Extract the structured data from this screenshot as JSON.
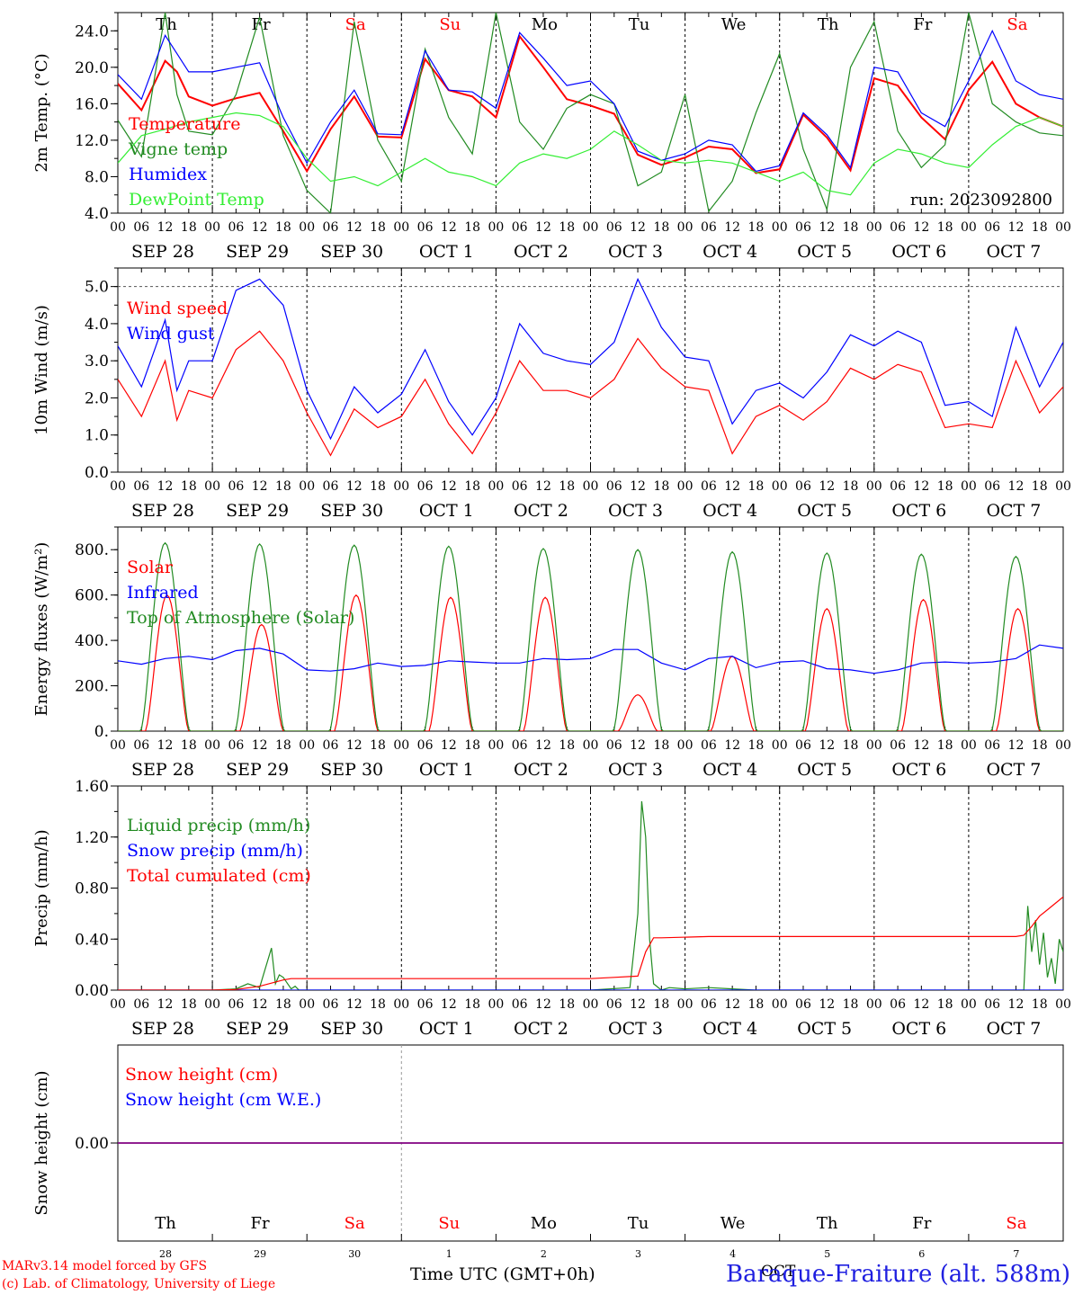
{
  "meta": {
    "station": "Baraque-Fraiture (alt. 588m)",
    "credit_line1": "MARv3.14 model forced by GFS",
    "credit_line2": "(c) Lab. of Climatology, University of Liege",
    "time_label": "Time UTC (GMT+0h)",
    "month_label": "OCT",
    "run_label": "run: 2023092800",
    "colors": {
      "red": "#ff0000",
      "green": "#228b22",
      "blue": "#0000ff",
      "lightgreen": "#33ee33",
      "purple": "#800080"
    }
  },
  "day_names": [
    "Th",
    "Fr",
    "Sa",
    "Su",
    "Mo",
    "Tu",
    "We",
    "Th",
    "Fr",
    "Sa"
  ],
  "weekend_days": [
    2,
    3,
    9
  ],
  "date_labels": [
    "SEP 28",
    "SEP 29",
    "SEP 30",
    "OCT  1",
    "OCT  2",
    "OCT  3",
    "OCT  4",
    "OCT  5",
    "OCT  6",
    "OCT  7"
  ],
  "hour_ticks": [
    "00",
    "06",
    "12",
    "18"
  ],
  "snow_day_numbers": [
    "28",
    "29",
    "30",
    "1",
    "2",
    "3",
    "4",
    "5",
    "6",
    "7"
  ],
  "chart_data": [
    {
      "type": "line",
      "id": "temperature",
      "ylabel": "2m Temp. (°C)",
      "ylim": [
        4,
        26
      ],
      "yticks": [
        4.0,
        8.0,
        12.0,
        16.0,
        20.0,
        24.0
      ],
      "ytick_labels": [
        "4.0",
        "8.0",
        "12.0",
        "16.0",
        "20.0",
        "24.0"
      ],
      "x_unit": "hours since SEP 28 00 UTC",
      "series": [
        {
          "name": "Temperature",
          "color": "red",
          "x": [
            0,
            6,
            12,
            15,
            18,
            24,
            30,
            36,
            42,
            48,
            54,
            60,
            66,
            72,
            78,
            84,
            90,
            96,
            102,
            108,
            114,
            120,
            126,
            132,
            138,
            144,
            150,
            156,
            162,
            168,
            174,
            180,
            186,
            192,
            198,
            204,
            210,
            216,
            222,
            228,
            234,
            240
          ],
          "values": [
            18.2,
            15.3,
            20.7,
            19.5,
            16.8,
            15.8,
            16.6,
            17.2,
            13.0,
            8.6,
            13.2,
            16.8,
            12.4,
            12.3,
            20.9,
            17.5,
            16.8,
            14.5,
            23.4,
            20.0,
            16.5,
            15.8,
            14.9,
            10.4,
            9.3,
            10.1,
            11.3,
            11.0,
            8.4,
            8.8,
            14.8,
            12.3,
            8.7,
            18.8,
            18.0,
            14.5,
            12.1,
            17.5,
            20.6,
            16.0,
            14.5,
            13.5
          ]
        },
        {
          "name": "Vigne temp",
          "color": "green",
          "x": [
            0,
            6,
            9,
            12,
            15,
            18,
            24,
            30,
            36,
            42,
            48,
            54,
            60,
            66,
            72,
            78,
            84,
            90,
            96,
            102,
            108,
            114,
            120,
            126,
            132,
            138,
            144,
            150,
            156,
            162,
            168,
            174,
            180,
            186,
            192,
            198,
            204,
            210,
            216,
            222,
            228,
            234,
            240
          ],
          "values": [
            14.2,
            10.2,
            18.0,
            26.0,
            17.0,
            13.0,
            12.6,
            17.0,
            25.5,
            12.5,
            6.5,
            4.0,
            25.0,
            12.0,
            7.5,
            22.0,
            14.5,
            10.5,
            26.0,
            14.0,
            11.0,
            15.5,
            17.0,
            16.0,
            7.0,
            8.5,
            17.0,
            4.2,
            7.5,
            15.0,
            21.5,
            11.0,
            4.4,
            20.0,
            25.0,
            13.0,
            9.0,
            11.5,
            26.0,
            16.0,
            14.0,
            12.8,
            12.5
          ]
        },
        {
          "name": "Humidex",
          "color": "blue",
          "x": [
            0,
            6,
            12,
            15,
            18,
            24,
            30,
            36,
            42,
            48,
            54,
            60,
            66,
            72,
            78,
            84,
            90,
            96,
            102,
            108,
            114,
            120,
            126,
            132,
            138,
            144,
            150,
            156,
            162,
            168,
            174,
            180,
            186,
            192,
            198,
            204,
            210,
            216,
            222,
            228,
            234,
            240
          ],
          "values": [
            19.2,
            16.5,
            23.5,
            21.5,
            19.5,
            19.5,
            20.0,
            20.5,
            14.5,
            9.5,
            14.0,
            17.5,
            12.7,
            12.6,
            21.8,
            17.5,
            17.3,
            15.5,
            23.8,
            21.0,
            18.0,
            18.5,
            16.0,
            10.8,
            9.8,
            10.5,
            12.0,
            11.5,
            8.6,
            9.2,
            15.0,
            12.6,
            9.0,
            20.0,
            19.5,
            15.0,
            13.5,
            18.5,
            24.0,
            18.5,
            17.0,
            16.5
          ]
        },
        {
          "name": "DewPoint Temp",
          "color": "lightgreen",
          "x": [
            0,
            6,
            12,
            18,
            24,
            30,
            36,
            42,
            48,
            54,
            60,
            66,
            72,
            78,
            84,
            90,
            96,
            102,
            108,
            114,
            120,
            126,
            132,
            138,
            144,
            150,
            156,
            162,
            168,
            174,
            180,
            186,
            192,
            198,
            204,
            210,
            216,
            222,
            228,
            234,
            240
          ],
          "values": [
            9.5,
            12.5,
            13.2,
            14.0,
            14.5,
            15.0,
            14.7,
            13.5,
            10.0,
            7.5,
            8.0,
            7.0,
            8.5,
            10.0,
            8.5,
            8.0,
            7.0,
            9.5,
            10.5,
            10.0,
            11.0,
            13.0,
            11.5,
            9.8,
            9.5,
            9.8,
            9.5,
            8.5,
            7.5,
            8.5,
            6.5,
            6.0,
            9.5,
            11.0,
            10.5,
            9.5,
            9.0,
            11.5,
            13.5,
            14.5,
            13.5
          ]
        }
      ]
    },
    {
      "type": "line",
      "id": "wind",
      "ylabel": "10m Wind (m/s)",
      "ylim": [
        0,
        5.5
      ],
      "ref_line": 5.0,
      "yticks": [
        0.0,
        1.0,
        2.0,
        3.0,
        4.0,
        5.0
      ],
      "ytick_labels": [
        "0.0",
        "1.0",
        "2.0",
        "3.0",
        "4.0",
        "5.0"
      ],
      "series": [
        {
          "name": "Wind speed",
          "color": "red",
          "x": [
            0,
            6,
            12,
            15,
            18,
            24,
            30,
            36,
            42,
            48,
            54,
            60,
            66,
            72,
            78,
            84,
            90,
            96,
            102,
            108,
            114,
            120,
            126,
            132,
            138,
            144,
            150,
            156,
            162,
            168,
            174,
            180,
            186,
            192,
            198,
            204,
            210,
            216,
            222,
            228,
            234,
            240
          ],
          "values": [
            2.5,
            1.5,
            3.0,
            1.4,
            2.2,
            2.0,
            3.3,
            3.8,
            3.0,
            1.6,
            0.45,
            1.7,
            1.2,
            1.5,
            2.5,
            1.3,
            0.5,
            1.6,
            3.0,
            2.2,
            2.2,
            2.0,
            2.5,
            3.6,
            2.8,
            2.3,
            2.2,
            0.5,
            1.5,
            1.8,
            1.4,
            1.9,
            2.8,
            2.5,
            2.9,
            2.7,
            1.2,
            1.3,
            1.2,
            3.0,
            1.6,
            2.3
          ]
        },
        {
          "name": "Wind gust",
          "color": "blue",
          "x": [
            0,
            6,
            12,
            15,
            18,
            24,
            30,
            36,
            42,
            48,
            54,
            60,
            66,
            72,
            78,
            84,
            90,
            96,
            102,
            108,
            114,
            120,
            126,
            132,
            138,
            144,
            150,
            156,
            162,
            168,
            174,
            180,
            186,
            192,
            198,
            204,
            210,
            216,
            222,
            228,
            234,
            240
          ],
          "values": [
            3.4,
            2.3,
            4.1,
            2.2,
            3.0,
            3.0,
            4.9,
            5.2,
            4.5,
            2.2,
            0.9,
            2.3,
            1.6,
            2.1,
            3.3,
            1.9,
            1.0,
            2.0,
            4.0,
            3.2,
            3.0,
            2.9,
            3.5,
            5.2,
            3.9,
            3.1,
            3.0,
            1.3,
            2.2,
            2.4,
            2.0,
            2.7,
            3.7,
            3.4,
            3.8,
            3.5,
            1.8,
            1.9,
            1.5,
            3.9,
            2.3,
            3.5
          ]
        }
      ]
    },
    {
      "type": "line",
      "id": "energy",
      "ylabel": "Energy fluxes (W/m²)",
      "ylim": [
        0,
        900
      ],
      "yticks": [
        0,
        200,
        400,
        600,
        800
      ],
      "ytick_labels": [
        "0.",
        "200.",
        "400.",
        "600.",
        "800."
      ],
      "series": [
        {
          "name": "Solar",
          "color": "red",
          "peaks": [
            {
              "center": 12.5,
              "peak": 600,
              "half": 5.5
            },
            {
              "center": 36.5,
              "peak": 470,
              "half": 5.5
            },
            {
              "center": 60.5,
              "peak": 600,
              "half": 5.5
            },
            {
              "center": 84.5,
              "peak": 590,
              "half": 5.5
            },
            {
              "center": 108.5,
              "peak": 590,
              "half": 5.5
            },
            {
              "center": 132,
              "peak": 160,
              "half": 5
            },
            {
              "center": 156,
              "peak": 330,
              "half": 5.5
            },
            {
              "center": 180,
              "peak": 540,
              "half": 5.5
            },
            {
              "center": 204.5,
              "peak": 580,
              "half": 5.5
            },
            {
              "center": 228.5,
              "peak": 540,
              "half": 5.5
            }
          ]
        },
        {
          "name": "Infrared",
          "color": "blue",
          "x": [
            0,
            6,
            12,
            18,
            24,
            30,
            36,
            42,
            48,
            54,
            60,
            66,
            72,
            78,
            84,
            90,
            96,
            102,
            108,
            114,
            120,
            126,
            132,
            138,
            144,
            150,
            156,
            162,
            168,
            174,
            180,
            186,
            192,
            198,
            204,
            210,
            216,
            222,
            228,
            234,
            240
          ],
          "values": [
            310,
            295,
            320,
            330,
            315,
            355,
            365,
            340,
            270,
            265,
            275,
            300,
            285,
            290,
            310,
            305,
            300,
            300,
            320,
            315,
            320,
            360,
            360,
            300,
            270,
            320,
            330,
            280,
            305,
            310,
            275,
            270,
            255,
            270,
            300,
            305,
            300,
            305,
            320,
            380,
            365
          ]
        },
        {
          "name": "Top of Atmosphere (Solar)",
          "color": "green",
          "peaks": [
            {
              "center": 12,
              "peak": 830,
              "half": 6.2
            },
            {
              "center": 36,
              "peak": 825,
              "half": 6.2
            },
            {
              "center": 60,
              "peak": 820,
              "half": 6.2
            },
            {
              "center": 84,
              "peak": 815,
              "half": 6.2
            },
            {
              "center": 108,
              "peak": 805,
              "half": 6.2
            },
            {
              "center": 132,
              "peak": 800,
              "half": 6.2
            },
            {
              "center": 156,
              "peak": 790,
              "half": 6.2
            },
            {
              "center": 180,
              "peak": 785,
              "half": 6.2
            },
            {
              "center": 204,
              "peak": 780,
              "half": 6.2
            },
            {
              "center": 228,
              "peak": 770,
              "half": 6.2
            }
          ]
        }
      ]
    },
    {
      "type": "line",
      "id": "precip",
      "ylabel": "Precip (mm/h)",
      "ylim": [
        0,
        1.6
      ],
      "yticks": [
        0.0,
        0.4,
        0.8,
        1.2,
        1.6
      ],
      "ytick_labels": [
        "0.00",
        "0.40",
        "0.80",
        "1.20",
        "1.60"
      ],
      "series": [
        {
          "name": "Liquid precip (mm/h)",
          "color": "green",
          "x": [
            0,
            24,
            30,
            33,
            36,
            39,
            40,
            41,
            42,
            44,
            45,
            46,
            48,
            120,
            130,
            132,
            133,
            134,
            135,
            136,
            138,
            140,
            144,
            150,
            156,
            162,
            230,
            231,
            232,
            233,
            234,
            235,
            236,
            237,
            238,
            239,
            240
          ],
          "values": [
            0,
            0,
            0.01,
            0.05,
            0.02,
            0.33,
            0.05,
            0.12,
            0.1,
            0.01,
            0.03,
            0.0,
            0,
            0,
            0.02,
            0.6,
            1.48,
            1.2,
            0.4,
            0.05,
            0.0,
            0.02,
            0.01,
            0.02,
            0.01,
            0,
            0,
            0.66,
            0.3,
            0.55,
            0.2,
            0.45,
            0.1,
            0.25,
            0.05,
            0.4,
            0.3
          ]
        },
        {
          "name": "Snow precip (mm/h)",
          "color": "blue",
          "x": [
            0,
            240
          ],
          "values": [
            0,
            0
          ]
        },
        {
          "name": "Total cumulated (cm)",
          "color": "red",
          "x": [
            0,
            24,
            30,
            36,
            42,
            44,
            48,
            120,
            126,
            132,
            134,
            136,
            138,
            150,
            168,
            228,
            230,
            232,
            234,
            236,
            238,
            240
          ],
          "values": [
            0,
            0,
            0.005,
            0.03,
            0.08,
            0.09,
            0.09,
            0.09,
            0.1,
            0.11,
            0.3,
            0.41,
            0.41,
            0.42,
            0.42,
            0.42,
            0.43,
            0.5,
            0.58,
            0.63,
            0.68,
            0.73
          ]
        }
      ]
    },
    {
      "type": "line",
      "id": "snow",
      "ylabel": "Snow height (cm)",
      "ylim": [
        -1,
        1
      ],
      "yticks": [
        0.0
      ],
      "ytick_labels": [
        "0.00"
      ],
      "series": [
        {
          "name": "Snow height (cm)",
          "color": "red",
          "x": [
            0,
            240
          ],
          "values": [
            0,
            0
          ]
        },
        {
          "name": "Snow height (cm W.E.)",
          "color": "blue",
          "x": [
            0,
            240
          ],
          "values": [
            0,
            0
          ]
        }
      ]
    }
  ]
}
